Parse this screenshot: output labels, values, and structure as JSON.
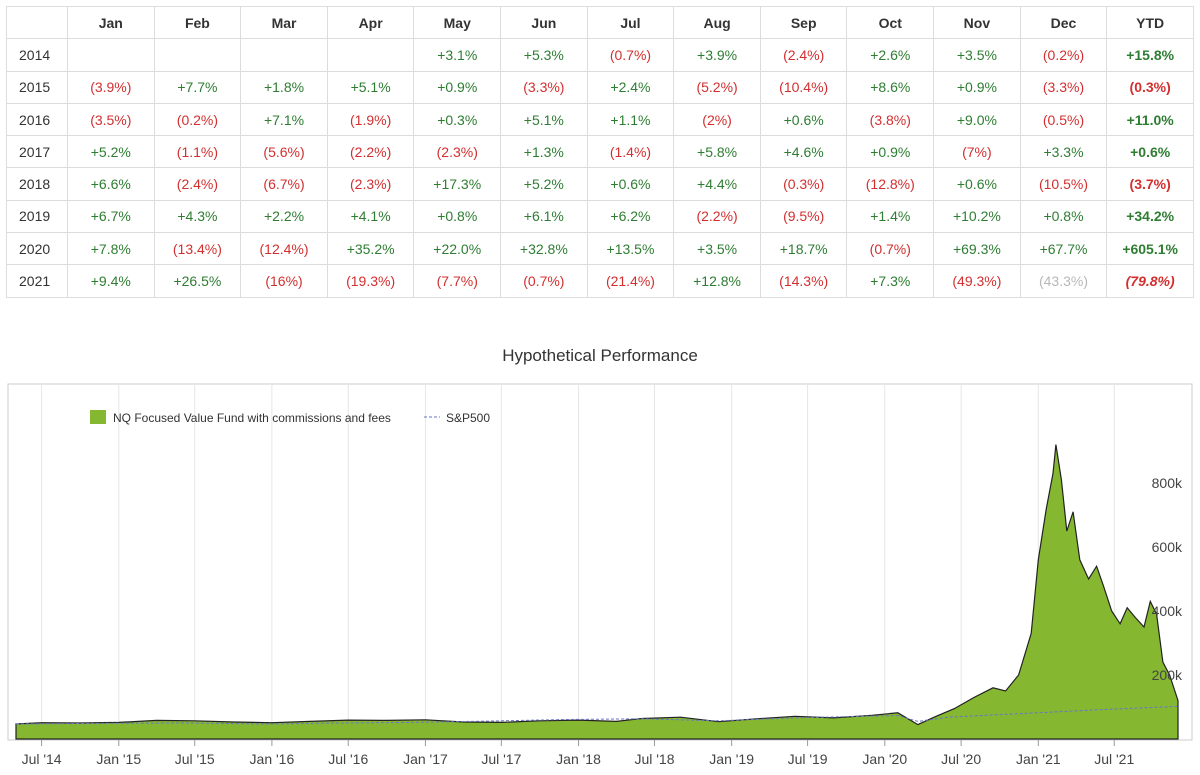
{
  "table": {
    "headers": [
      "",
      "Jan",
      "Feb",
      "Mar",
      "Apr",
      "May",
      "Jun",
      "Jul",
      "Aug",
      "Sep",
      "Oct",
      "Nov",
      "Dec",
      "YTD"
    ],
    "rows": [
      {
        "year": "2014",
        "cells": [
          "",
          "",
          "",
          "",
          "+3.1%",
          "+5.3%",
          "(0.7%)",
          "+3.9%",
          "(2.4%)",
          "+2.6%",
          "+3.5%",
          "(0.2%)"
        ],
        "ytd": "+15.8%"
      },
      {
        "year": "2015",
        "cells": [
          "(3.9%)",
          "+7.7%",
          "+1.8%",
          "+5.1%",
          "+0.9%",
          "(3.3%)",
          "+2.4%",
          "(5.2%)",
          "(10.4%)",
          "+8.6%",
          "+0.9%",
          "(3.3%)"
        ],
        "ytd": "(0.3%)"
      },
      {
        "year": "2016",
        "cells": [
          "(3.5%)",
          "(0.2%)",
          "+7.1%",
          "(1.9%)",
          "+0.3%",
          "+5.1%",
          "+1.1%",
          "(2%)",
          "+0.6%",
          "(3.8%)",
          "+9.0%",
          "(0.5%)"
        ],
        "ytd": "+11.0%"
      },
      {
        "year": "2017",
        "cells": [
          "+5.2%",
          "(1.1%)",
          "(5.6%)",
          "(2.2%)",
          "(2.3%)",
          "+1.3%",
          "(1.4%)",
          "+5.8%",
          "+4.6%",
          "+0.9%",
          "(7%)",
          "+3.3%"
        ],
        "ytd": "+0.6%"
      },
      {
        "year": "2018",
        "cells": [
          "+6.6%",
          "(2.4%)",
          "(6.7%)",
          "(2.3%)",
          "+17.3%",
          "+5.2%",
          "+0.6%",
          "+4.4%",
          "(0.3%)",
          "(12.8%)",
          "+0.6%",
          "(10.5%)"
        ],
        "ytd": "(3.7%)"
      },
      {
        "year": "2019",
        "cells": [
          "+6.7%",
          "+4.3%",
          "+2.2%",
          "+4.1%",
          "+0.8%",
          "+6.1%",
          "+6.2%",
          "(2.2%)",
          "(9.5%)",
          "+1.4%",
          "+10.2%",
          "+0.8%"
        ],
        "ytd": "+34.2%"
      },
      {
        "year": "2020",
        "cells": [
          "+7.8%",
          "(13.4%)",
          "(12.4%)",
          "+35.2%",
          "+22.0%",
          "+32.8%",
          "+13.5%",
          "+3.5%",
          "+18.7%",
          "(0.7%)",
          "+69.3%",
          "+67.7%"
        ],
        "ytd": "+605.1%"
      },
      {
        "year": "2021",
        "cells": [
          "+9.4%",
          "+26.5%",
          "(16%)",
          "(19.3%)",
          "(7.7%)",
          "(0.7%)",
          "(21.4%)",
          "+12.8%",
          "(14.3%)",
          "+7.3%",
          "(49.3%)",
          "(43.3%)"
        ],
        "ytd": "(79.8%)"
      }
    ]
  },
  "chart_data": {
    "type": "area",
    "title": "Hypothetical Performance",
    "legend_position": "top-left",
    "grid": true,
    "x_ticks": [
      "Jul '14",
      "Jan '15",
      "Jul '15",
      "Jan '16",
      "Jul '16",
      "Jan '17",
      "Jul '17",
      "Jan '18",
      "Jul '18",
      "Jan '19",
      "Jul '19",
      "Jan '20",
      "Jul '20",
      "Jan '21",
      "Jul '21"
    ],
    "y_ticks": [
      {
        "value": 200000,
        "label": "200k"
      },
      {
        "value": 400000,
        "label": "400k"
      },
      {
        "value": 600000,
        "label": "600k"
      },
      {
        "value": 800000,
        "label": "800k"
      }
    ],
    "ylim": [
      0,
      1000000
    ],
    "series": [
      {
        "name": "NQ Focused Value Fund with commissions and fees",
        "color": "#85b830",
        "style": "area",
        "points": [
          [
            "2014-05-01",
            47000
          ],
          [
            "2014-07-01",
            51000
          ],
          [
            "2014-10-01",
            50000
          ],
          [
            "2015-01-01",
            52000
          ],
          [
            "2015-04-01",
            58000
          ],
          [
            "2015-07-01",
            57000
          ],
          [
            "2015-10-01",
            53000
          ],
          [
            "2016-01-01",
            51000
          ],
          [
            "2016-04-01",
            55000
          ],
          [
            "2016-07-01",
            59000
          ],
          [
            "2016-10-01",
            58000
          ],
          [
            "2017-01-01",
            60000
          ],
          [
            "2017-04-01",
            53000
          ],
          [
            "2017-07-01",
            52000
          ],
          [
            "2017-10-01",
            57000
          ],
          [
            "2018-01-01",
            59000
          ],
          [
            "2018-04-01",
            55000
          ],
          [
            "2018-06-01",
            64000
          ],
          [
            "2018-09-01",
            68000
          ],
          [
            "2018-12-01",
            54000
          ],
          [
            "2019-03-01",
            63000
          ],
          [
            "2019-06-01",
            71000
          ],
          [
            "2019-09-01",
            66000
          ],
          [
            "2019-12-01",
            74000
          ],
          [
            "2020-02-01",
            82000
          ],
          [
            "2020-03-20",
            45000
          ],
          [
            "2020-05-01",
            70000
          ],
          [
            "2020-06-15",
            95000
          ],
          [
            "2020-08-01",
            130000
          ],
          [
            "2020-09-15",
            160000
          ],
          [
            "2020-10-15",
            150000
          ],
          [
            "2020-11-15",
            200000
          ],
          [
            "2020-12-15",
            330000
          ],
          [
            "2021-01-01",
            560000
          ],
          [
            "2021-01-20",
            720000
          ],
          [
            "2021-02-05",
            830000
          ],
          [
            "2021-02-12",
            920000
          ],
          [
            "2021-02-25",
            810000
          ],
          [
            "2021-03-10",
            650000
          ],
          [
            "2021-03-25",
            710000
          ],
          [
            "2021-04-10",
            560000
          ],
          [
            "2021-05-01",
            500000
          ],
          [
            "2021-05-20",
            540000
          ],
          [
            "2021-06-05",
            480000
          ],
          [
            "2021-06-25",
            400000
          ],
          [
            "2021-07-15",
            360000
          ],
          [
            "2021-08-01",
            410000
          ],
          [
            "2021-08-20",
            380000
          ],
          [
            "2021-09-10",
            350000
          ],
          [
            "2021-09-25",
            430000
          ],
          [
            "2021-10-10",
            390000
          ],
          [
            "2021-10-25",
            240000
          ],
          [
            "2021-11-10",
            200000
          ],
          [
            "2021-11-30",
            120000
          ]
        ]
      },
      {
        "name": "S&P500",
        "color": "#6a75c9",
        "style": "dashed-line",
        "points": [
          [
            "2014-05-01",
            47000
          ],
          [
            "2014-12-01",
            49000
          ],
          [
            "2015-06-01",
            50000
          ],
          [
            "2016-01-01",
            47000
          ],
          [
            "2016-06-01",
            50000
          ],
          [
            "2016-12-01",
            52000
          ],
          [
            "2017-06-01",
            56000
          ],
          [
            "2017-12-01",
            61000
          ],
          [
            "2018-06-01",
            63000
          ],
          [
            "2018-12-01",
            57000
          ],
          [
            "2019-06-01",
            66000
          ],
          [
            "2019-12-01",
            72000
          ],
          [
            "2020-02-01",
            73000
          ],
          [
            "2020-03-20",
            55000
          ],
          [
            "2020-06-01",
            68000
          ],
          [
            "2020-12-01",
            80000
          ],
          [
            "2021-06-01",
            92000
          ],
          [
            "2021-11-30",
            102000
          ]
        ]
      }
    ]
  }
}
